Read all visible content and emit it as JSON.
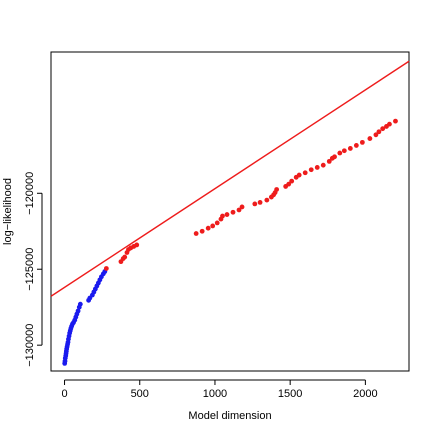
{
  "chart_data": {
    "type": "scatter",
    "title": "",
    "xlabel": "Model dimension",
    "ylabel": "log−likelihood",
    "xlim": [
      -90,
      2290
    ],
    "ylim": [
      -131700,
      -110700
    ],
    "xticks": [
      0,
      500,
      1000,
      1500,
      2000
    ],
    "xtick_labels": [
      "0",
      "500",
      "1000",
      "1500",
      "2000"
    ],
    "yticks": [
      -130000,
      -125000,
      -120000
    ],
    "ytick_labels": [
      "−130000",
      "−125000",
      "−120000"
    ],
    "grid": false,
    "legend": "none",
    "fit_line": {
      "color": "#ee1c1c",
      "p1": [
        -90,
        -126780
      ],
      "p2": [
        2290,
        -111310
      ]
    },
    "series": [
      {
        "color": "#1a1aee",
        "points": [
          [
            1,
            -131200
          ],
          [
            3,
            -131050
          ],
          [
            5,
            -130850
          ],
          [
            8,
            -130700
          ],
          [
            10,
            -130550
          ],
          [
            12,
            -130400
          ],
          [
            14,
            -130250
          ],
          [
            17,
            -130100
          ],
          [
            20,
            -129950
          ],
          [
            23,
            -129800
          ],
          [
            26,
            -129600
          ],
          [
            30,
            -129400
          ],
          [
            34,
            -129200
          ],
          [
            38,
            -129050
          ],
          [
            42,
            -128900
          ],
          [
            47,
            -128750
          ],
          [
            53,
            -128600
          ],
          [
            60,
            -128500
          ],
          [
            68,
            -128350
          ],
          [
            75,
            -128150
          ],
          [
            82,
            -127950
          ],
          [
            90,
            -127750
          ],
          [
            98,
            -127500
          ],
          [
            105,
            -127300
          ],
          [
            160,
            -127050
          ],
          [
            168,
            -126900
          ],
          [
            185,
            -126700
          ],
          [
            195,
            -126500
          ],
          [
            205,
            -126300
          ],
          [
            215,
            -126100
          ],
          [
            225,
            -125900
          ],
          [
            235,
            -125700
          ],
          [
            245,
            -125500
          ],
          [
            258,
            -125300
          ],
          [
            268,
            -125150
          ]
        ]
      },
      {
        "color": "#ee1c1c",
        "points": [
          [
            278,
            -124950
          ],
          [
            375,
            -124500
          ],
          [
            390,
            -124300
          ],
          [
            400,
            -124200
          ],
          [
            415,
            -123900
          ],
          [
            425,
            -123700
          ],
          [
            440,
            -123600
          ],
          [
            460,
            -123500
          ],
          [
            480,
            -123400
          ],
          [
            875,
            -122650
          ],
          [
            915,
            -122500
          ],
          [
            955,
            -122300
          ],
          [
            985,
            -122150
          ],
          [
            1015,
            -121950
          ],
          [
            1040,
            -121700
          ],
          [
            1050,
            -121500
          ],
          [
            1080,
            -121400
          ],
          [
            1120,
            -121250
          ],
          [
            1160,
            -121100
          ],
          [
            1180,
            -120900
          ],
          [
            1265,
            -120700
          ],
          [
            1300,
            -120600
          ],
          [
            1345,
            -120450
          ],
          [
            1375,
            -120250
          ],
          [
            1390,
            -120100
          ],
          [
            1400,
            -119950
          ],
          [
            1410,
            -119750
          ],
          [
            1470,
            -119550
          ],
          [
            1490,
            -119400
          ],
          [
            1510,
            -119200
          ],
          [
            1540,
            -118950
          ],
          [
            1560,
            -118800
          ],
          [
            1600,
            -118650
          ],
          [
            1640,
            -118450
          ],
          [
            1680,
            -118300
          ],
          [
            1720,
            -118150
          ],
          [
            1760,
            -117900
          ],
          [
            1780,
            -117700
          ],
          [
            1795,
            -117600
          ],
          [
            1830,
            -117350
          ],
          [
            1860,
            -117200
          ],
          [
            1900,
            -117050
          ],
          [
            1940,
            -116850
          ],
          [
            1980,
            -116650
          ],
          [
            2030,
            -116400
          ],
          [
            2070,
            -116150
          ],
          [
            2090,
            -115950
          ],
          [
            2115,
            -115750
          ],
          [
            2140,
            -115600
          ],
          [
            2160,
            -115450
          ],
          [
            2200,
            -115250
          ]
        ]
      }
    ]
  }
}
